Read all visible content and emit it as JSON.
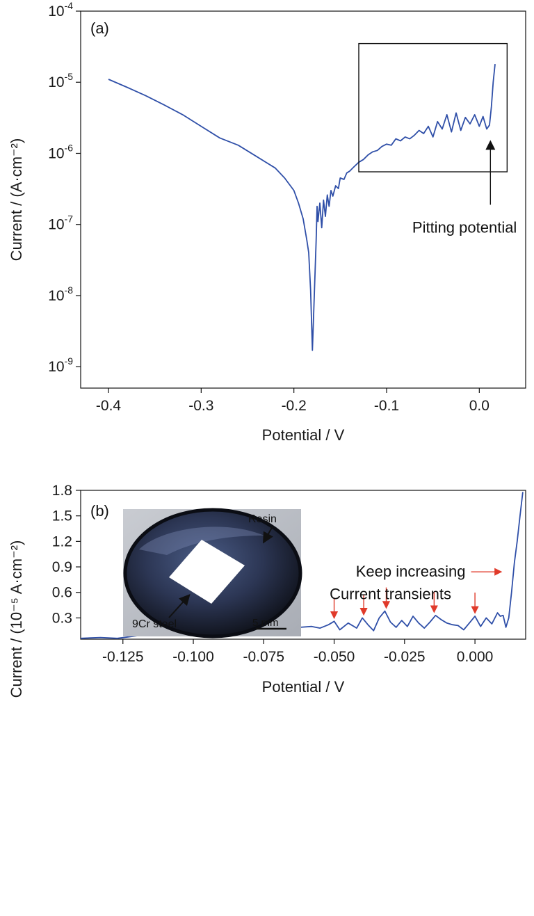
{
  "chart_data": [
    {
      "type": "line",
      "panel_label": "(a)",
      "xlabel": "Potential / V",
      "ylabel": "Current / (A·cm⁻²)",
      "y_scale": "log",
      "xlim": [
        -0.43,
        0.05
      ],
      "ylim": [
        5e-10,
        0.0001
      ],
      "x_ticks": [
        -0.4,
        -0.3,
        -0.2,
        -0.1,
        0.0
      ],
      "x_tick_labels": [
        "-0.4",
        "-0.3",
        "-0.2",
        "-0.1",
        "0.0"
      ],
      "y_ticks": [
        {
          "value": 1e-09,
          "base": "10",
          "exp": "-9"
        },
        {
          "value": 1e-08,
          "base": "10",
          "exp": "-8"
        },
        {
          "value": 1e-07,
          "base": "10",
          "exp": "-7"
        },
        {
          "value": 1e-06,
          "base": "10",
          "exp": "-6"
        },
        {
          "value": 1e-05,
          "base": "10",
          "exp": "-5"
        },
        {
          "value": 0.0001,
          "base": "10",
          "exp": "-4"
        }
      ],
      "series_color": "#2f4fa8",
      "series": [
        {
          "x": [
            -0.4,
            -0.38,
            -0.36,
            -0.34,
            -0.32,
            -0.3,
            -0.28,
            -0.26,
            -0.24,
            -0.22,
            -0.21,
            -0.2,
            -0.195,
            -0.19,
            -0.186,
            -0.184,
            -0.182,
            -0.18,
            -0.178,
            -0.176,
            -0.175,
            -0.174,
            -0.172,
            -0.17,
            -0.168,
            -0.166,
            -0.164,
            -0.162,
            -0.16,
            -0.158,
            -0.155,
            -0.152,
            -0.15,
            -0.146,
            -0.143,
            -0.14,
            -0.135,
            -0.13,
            -0.125,
            -0.12,
            -0.115,
            -0.11,
            -0.105,
            -0.1,
            -0.095,
            -0.09,
            -0.085,
            -0.08,
            -0.075,
            -0.07,
            -0.065,
            -0.06,
            -0.055,
            -0.05,
            -0.045,
            -0.04,
            -0.035,
            -0.03,
            -0.025,
            -0.02,
            -0.015,
            -0.01,
            -0.005,
            0.0,
            0.004,
            0.008,
            0.011,
            0.013,
            0.015,
            0.017
          ],
          "y": [
            1.1e-05,
            8.5e-06,
            6.5e-06,
            4.8e-06,
            3.5e-06,
            2.4e-06,
            1.65e-06,
            1.3e-06,
            9e-07,
            6.2e-07,
            4.5e-07,
            3e-07,
            2e-07,
            1.2e-07,
            6e-08,
            4e-08,
            1.2e-08,
            1.7e-09,
            1e-08,
            6e-08,
            1.8e-07,
            1.1e-07,
            2e-07,
            9e-08,
            2.2e-07,
            1.3e-07,
            2.6e-07,
            1.8e-07,
            3e-07,
            2.5e-07,
            3.5e-07,
            3.2e-07,
            4.5e-07,
            4.3e-07,
            5.3e-07,
            5.6e-07,
            6.5e-07,
            7.5e-07,
            8.2e-07,
            9.5e-07,
            1.05e-06,
            1.1e-06,
            1.25e-06,
            1.35e-06,
            1.3e-06,
            1.6e-06,
            1.5e-06,
            1.7e-06,
            1.6e-06,
            1.8e-06,
            2.1e-06,
            1.9e-06,
            2.4e-06,
            1.7e-06,
            2.8e-06,
            2.2e-06,
            3.5e-06,
            2e-06,
            3.7e-06,
            2.1e-06,
            3.2e-06,
            2.6e-06,
            3.5e-06,
            2.4e-06,
            3.3e-06,
            2.2e-06,
            2.5e-06,
            4.5e-06,
            1e-05,
            1.8e-05
          ]
        }
      ],
      "annotations": [
        {
          "text": "Pitting potential",
          "x": 0.012,
          "y": 1.8e-06
        }
      ],
      "highlight_box": {
        "x": [
          -0.13,
          0.03
        ],
        "y": [
          5.5e-07,
          3.5e-05
        ]
      }
    },
    {
      "type": "line",
      "panel_label": "(b)",
      "xlabel": "Potential / V",
      "ylabel": "Current / (10⁻⁵ A·cm⁻²)",
      "xlim": [
        -0.14,
        0.018
      ],
      "ylim": [
        0.05,
        1.8
      ],
      "x_ticks": [
        -0.125,
        -0.1,
        -0.075,
        -0.05,
        -0.025,
        0.0
      ],
      "x_tick_labels": [
        "-0.125",
        "-0.100",
        "-0.075",
        "-0.050",
        "-0.025",
        "0.000"
      ],
      "y_ticks": [
        0.3,
        0.6,
        0.9,
        1.2,
        1.5,
        1.8
      ],
      "y_tick_labels": [
        "0.3",
        "0.6",
        "0.9",
        "1.2",
        "1.5",
        "1.8"
      ],
      "series_color": "#2f4fa8",
      "series": [
        {
          "x": [
            -0.14,
            -0.133,
            -0.127,
            -0.12,
            -0.113,
            -0.106,
            -0.1,
            -0.093,
            -0.086,
            -0.08,
            -0.074,
            -0.068,
            -0.062,
            -0.058,
            -0.055,
            -0.052,
            -0.05,
            -0.048,
            -0.045,
            -0.042,
            -0.04,
            -0.038,
            -0.036,
            -0.034,
            -0.032,
            -0.03,
            -0.028,
            -0.026,
            -0.024,
            -0.022,
            -0.02,
            -0.018,
            -0.016,
            -0.014,
            -0.012,
            -0.01,
            -0.008,
            -0.006,
            -0.004,
            -0.002,
            0.0,
            0.002,
            0.004,
            0.006,
            0.008,
            0.009,
            0.01,
            0.011,
            0.012,
            0.013,
            0.014,
            0.015,
            0.016,
            0.017
          ],
          "y": [
            0.06,
            0.07,
            0.06,
            0.09,
            0.11,
            0.12,
            0.13,
            0.14,
            0.15,
            0.16,
            0.17,
            0.18,
            0.19,
            0.2,
            0.18,
            0.22,
            0.26,
            0.16,
            0.24,
            0.18,
            0.3,
            0.22,
            0.15,
            0.3,
            0.38,
            0.25,
            0.19,
            0.27,
            0.2,
            0.32,
            0.24,
            0.18,
            0.25,
            0.33,
            0.28,
            0.24,
            0.22,
            0.21,
            0.16,
            0.24,
            0.32,
            0.2,
            0.3,
            0.23,
            0.36,
            0.32,
            0.33,
            0.19,
            0.3,
            0.6,
            0.95,
            1.2,
            1.5,
            1.78
          ]
        }
      ],
      "annotations": [
        {
          "text": "Keep increasing",
          "x": 0.009,
          "y": 0.85
        },
        {
          "text": "Current transients",
          "x": -0.03,
          "y": 0.52
        }
      ],
      "transient_arrows_x": [
        -0.05,
        -0.0395,
        -0.0315,
        -0.0145,
        0.0
      ],
      "arrow_color": "#e03a2a",
      "inset": {
        "labels": [
          "Resin",
          "9Cr steel",
          "5 mm"
        ]
      }
    }
  ]
}
